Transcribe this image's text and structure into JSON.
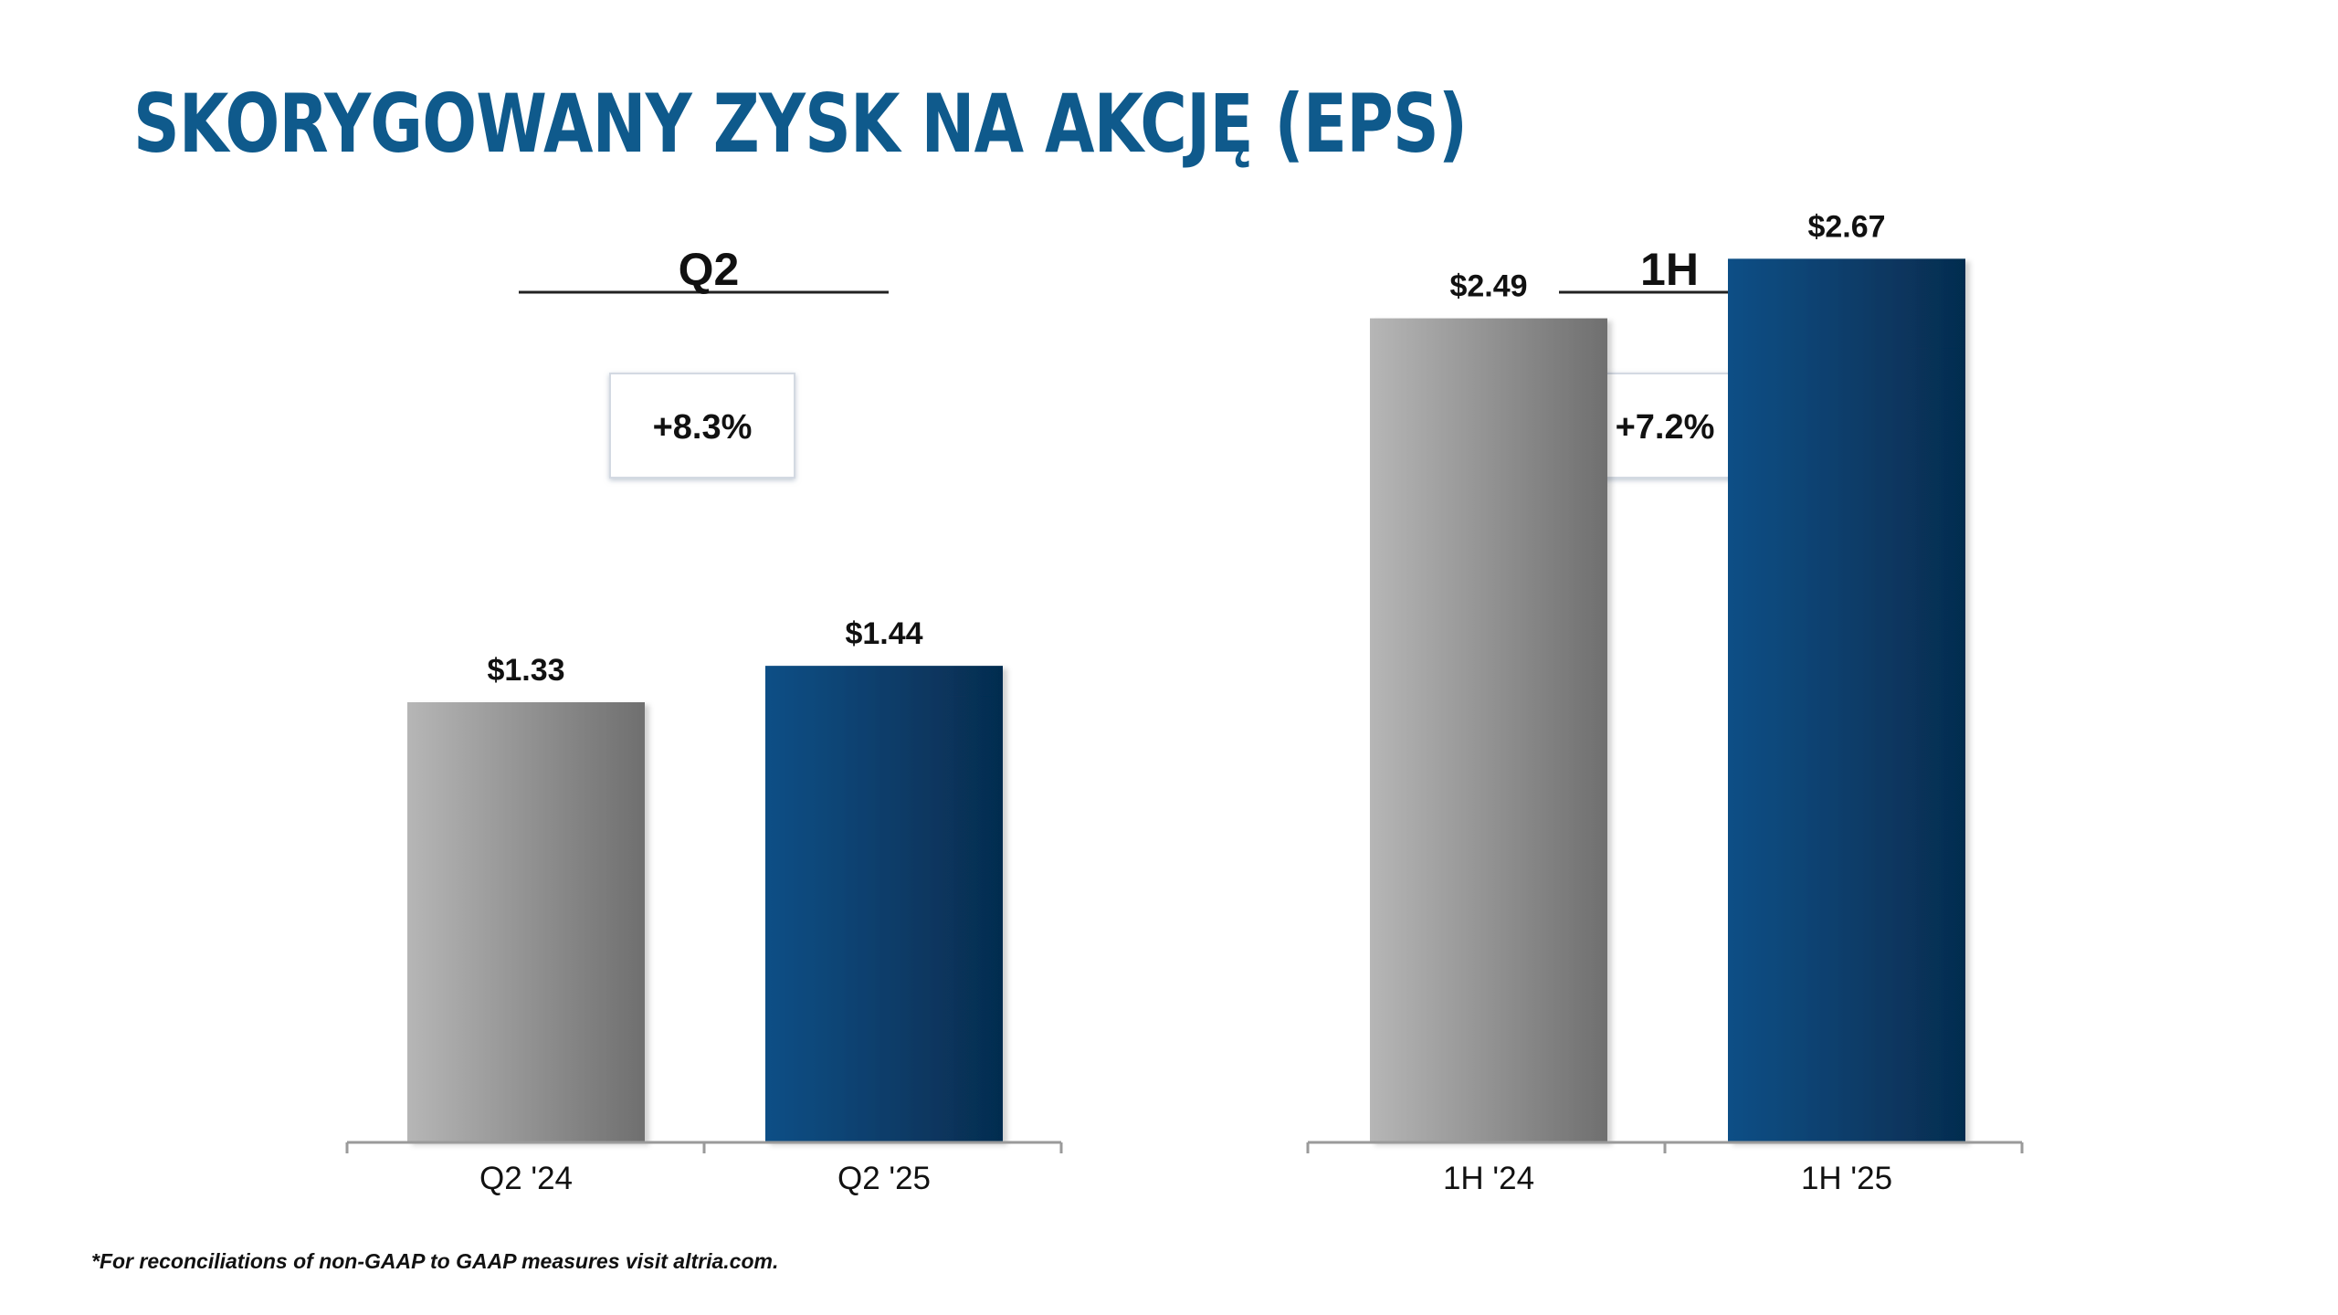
{
  "title": "SKORYGOWANY ZYSK NA AKCJĘ (EPS)",
  "footnote": "*For reconciliations of non-GAAP to GAAP measures visit altria.com.",
  "colors": {
    "title": "#0f5a8c",
    "prior_bar_light": "#b6b6b6",
    "prior_bar_dark": "#6f6f6f",
    "current_bar_light": "#0a4f86",
    "current_bar_dark": "#062c4f",
    "axis": "#9a9a9a"
  },
  "chart_data": [
    {
      "type": "bar",
      "title": "Q2",
      "growth_label": "+8.3%",
      "categories": [
        "Q2 '24",
        "Q2 '25"
      ],
      "values": [
        1.33,
        1.44
      ],
      "value_labels": [
        "$1.33",
        "$1.44"
      ],
      "ylim": [
        0,
        2.9
      ],
      "xlabel": "",
      "ylabel": ""
    },
    {
      "type": "bar",
      "title": "1H",
      "growth_label": "+7.2%",
      "categories": [
        "1H '24",
        "1H '25"
      ],
      "values": [
        2.49,
        2.67
      ],
      "value_labels": [
        "$2.49",
        "$2.67"
      ],
      "ylim": [
        0,
        2.9
      ],
      "xlabel": "",
      "ylabel": ""
    }
  ]
}
